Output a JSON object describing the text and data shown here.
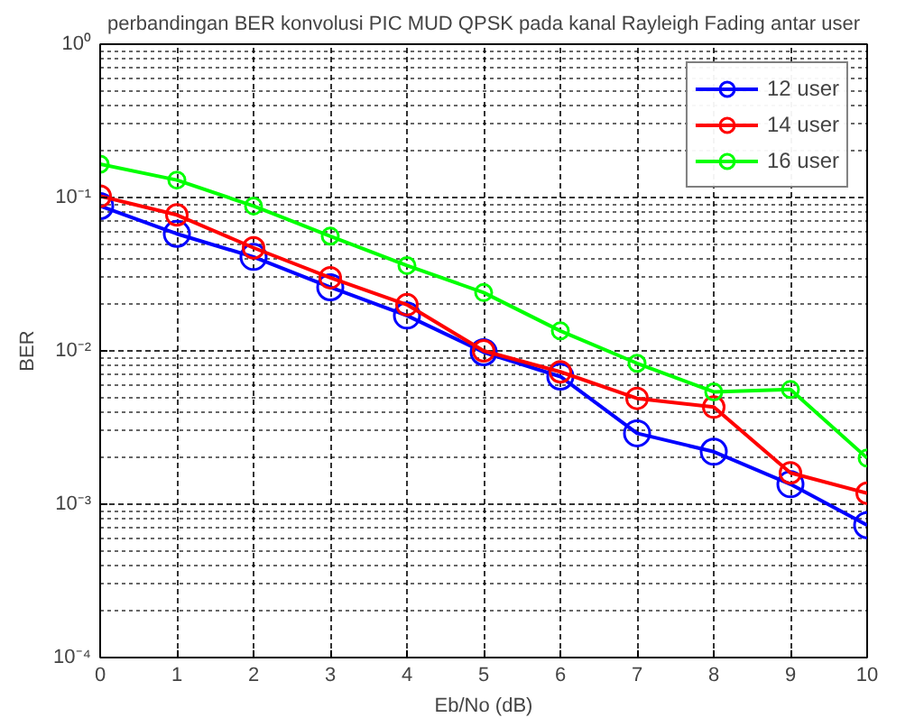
{
  "chart_data": {
    "type": "line",
    "title": "perbandingan BER konvolusi PIC MUD QPSK pada kanal Rayleigh Fading antar user",
    "xlabel": "Eb/No (dB)",
    "ylabel": "BER",
    "x": [
      0,
      1,
      2,
      3,
      4,
      5,
      6,
      7,
      8,
      9,
      10
    ],
    "series": [
      {
        "name": "12 user",
        "color": "#0000ff",
        "values": [
          0.088,
          0.058,
          0.041,
          0.026,
          0.017,
          0.0098,
          0.0068,
          0.0029,
          0.0022,
          0.00135,
          0.00073
        ]
      },
      {
        "name": "14 user",
        "color": "#ff0000",
        "values": [
          0.102,
          0.077,
          0.047,
          0.03,
          0.02,
          0.01,
          0.0073,
          0.0049,
          0.0043,
          0.0016,
          0.00118
        ]
      },
      {
        "name": "16 user",
        "color": "#00ff00",
        "values": [
          0.165,
          0.13,
          0.088,
          0.056,
          0.036,
          0.024,
          0.0135,
          0.0083,
          0.0054,
          0.0056,
          0.002
        ]
      }
    ],
    "xlim": [
      0,
      10
    ],
    "xticks": [
      0,
      1,
      2,
      3,
      4,
      5,
      6,
      7,
      8,
      9,
      10
    ],
    "ylim": [
      0.0001,
      1
    ],
    "yticks": [
      {
        "value": 0.0001,
        "label": "10⁻⁴"
      },
      {
        "value": 0.001,
        "label": "10⁻³"
      },
      {
        "value": 0.01,
        "label": "10⁻²"
      },
      {
        "value": 0.1,
        "label": "10⁻¹"
      },
      {
        "value": 1,
        "label": "10⁰"
      }
    ],
    "log": "y",
    "grid": true,
    "legend": "top right",
    "marker": "circle",
    "line_style": "solid"
  }
}
